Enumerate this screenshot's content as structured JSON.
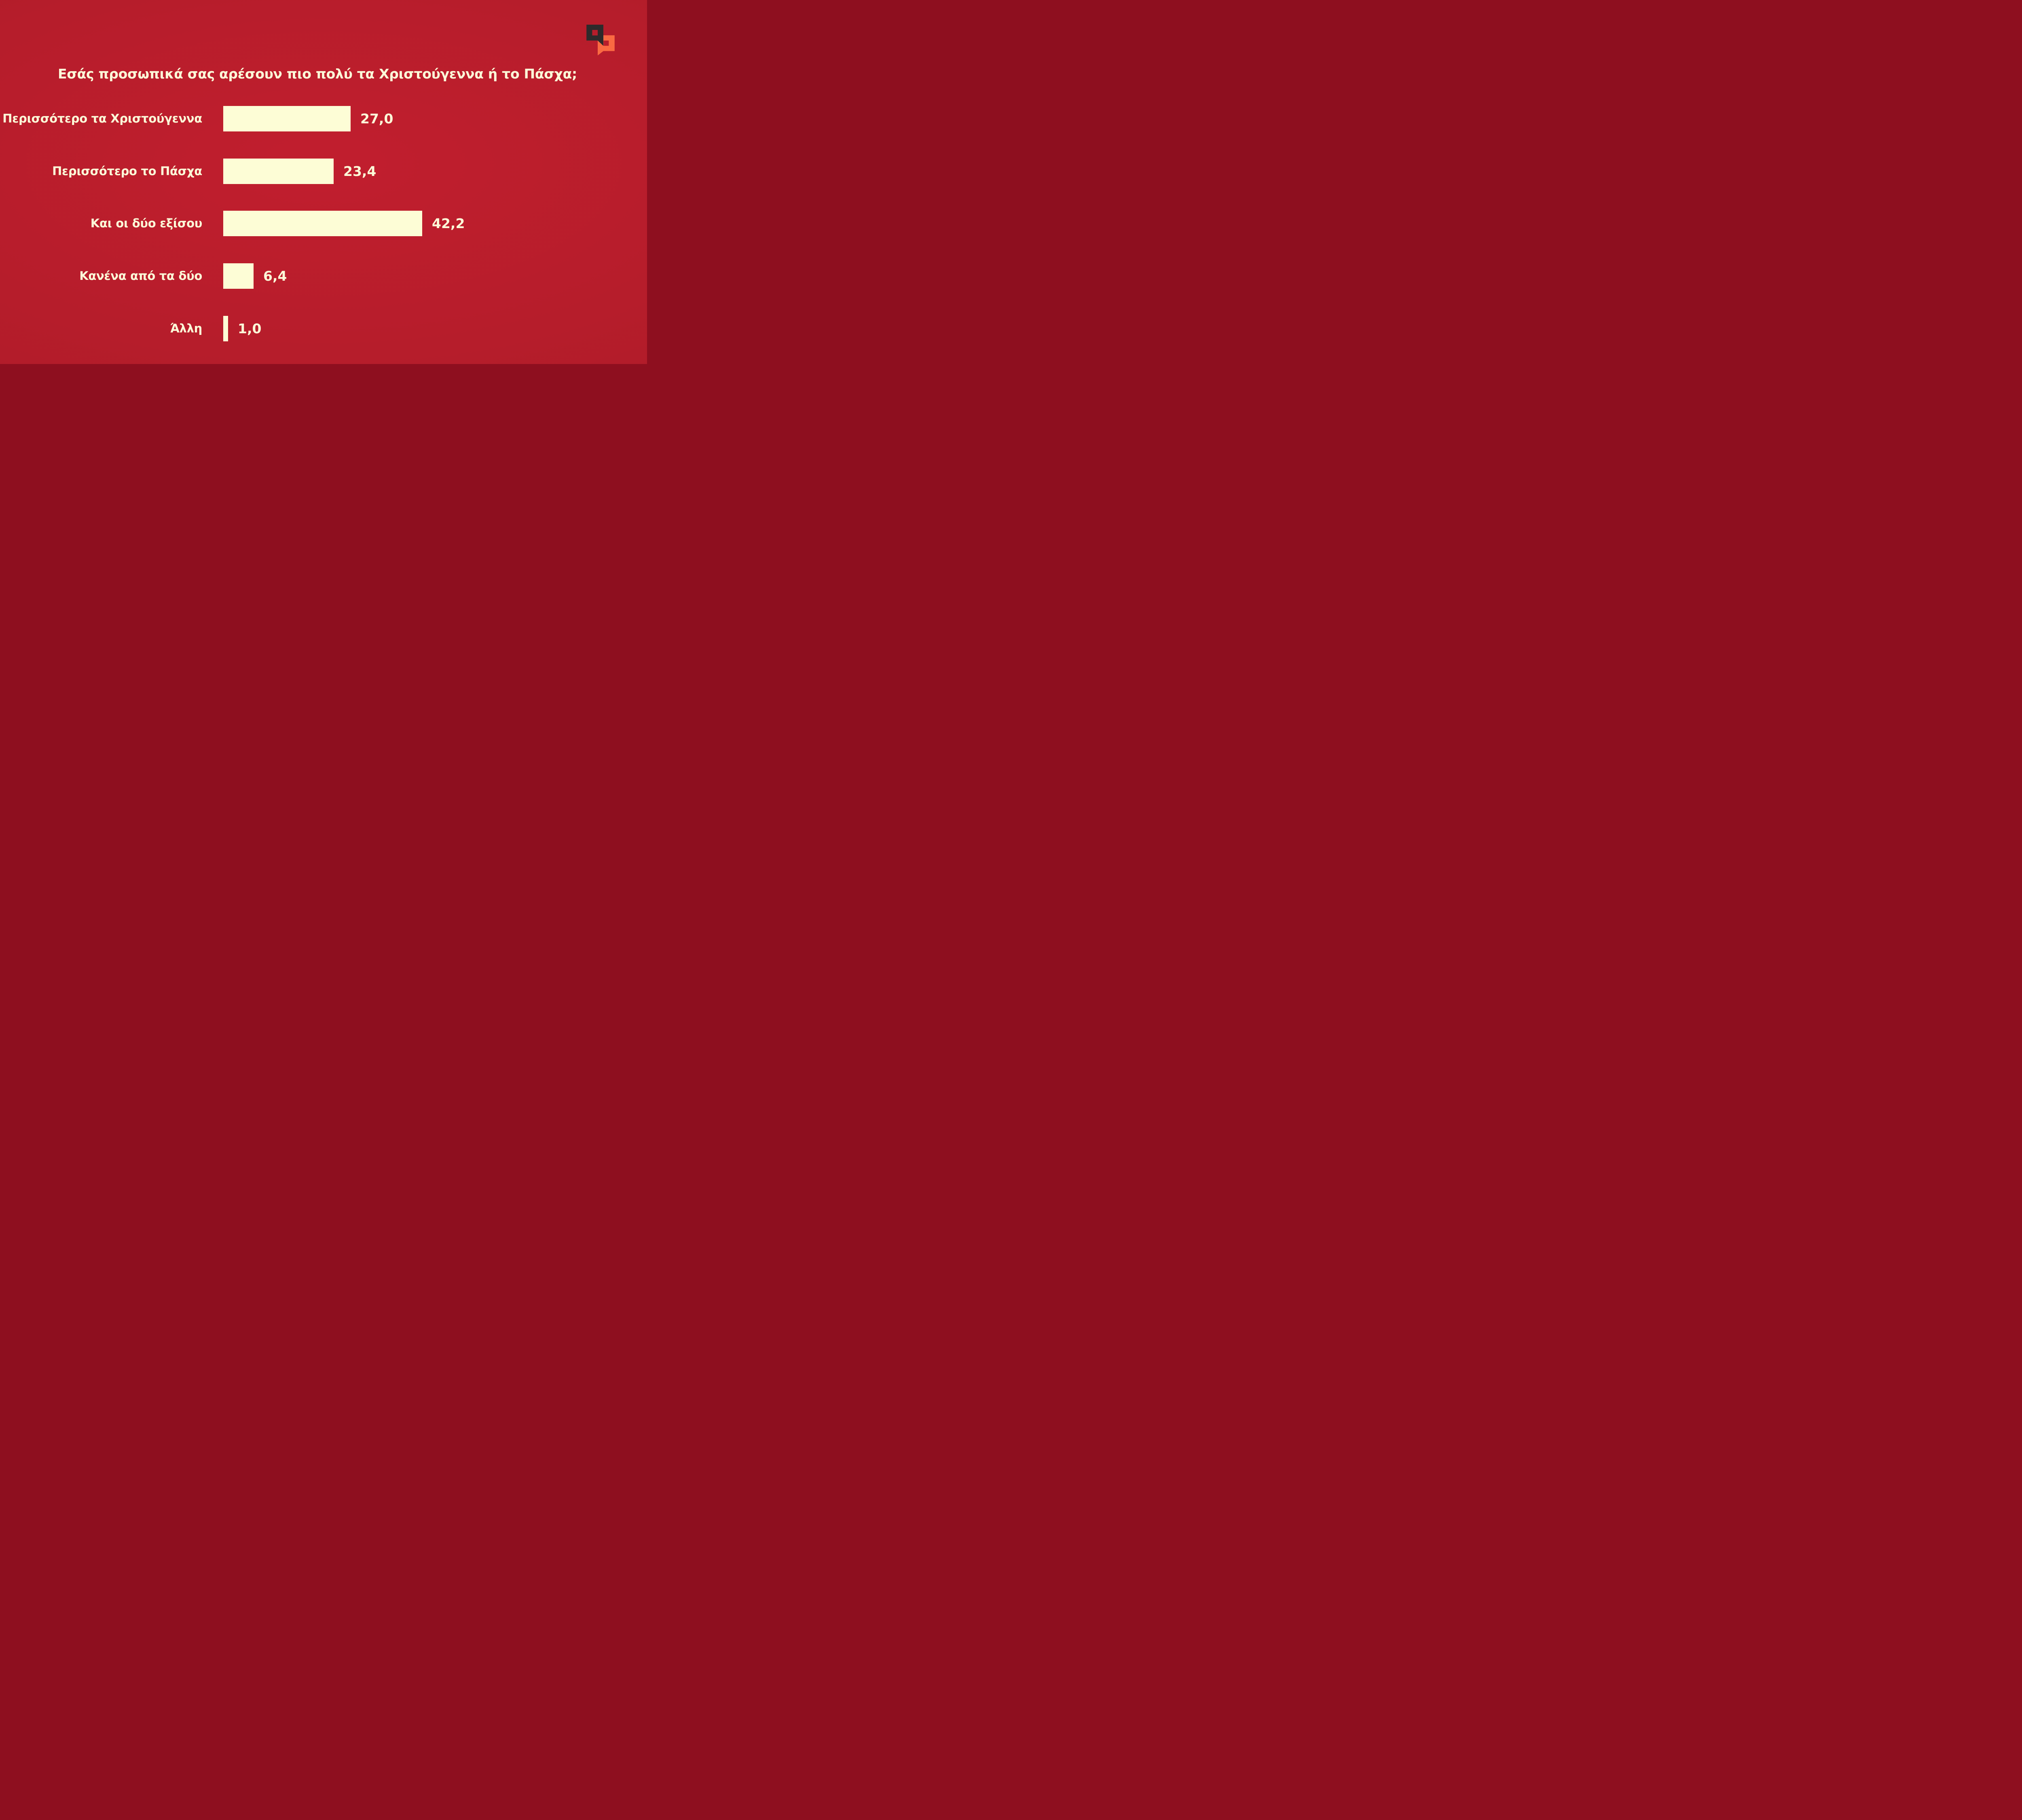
{
  "title": {
    "text": "Εσάς προσωπικά σας αρέσουν πιο πολύ τα Χριστούγεννα ή το Πάσχα;",
    "color": "#fcfbd9"
  },
  "background": {
    "center_color": "#c11e2e",
    "edge_color": "#ac1b28"
  },
  "logo": {
    "name": "chat-bubbles-logo",
    "dark_color": "#2e2a2b",
    "orange_color": "#fa6a42"
  },
  "chart_data": {
    "type": "bar",
    "orientation": "horizontal",
    "title": "Εσάς προσωπικά σας αρέσουν πιο πολύ τα Χριστούγεννα ή το Πάσχα;",
    "categories": [
      "Περισσότερο τα Χριστούγεννα",
      "Περισσότερο το Πάσχα",
      "Και οι δύο εξίσου",
      "Κανένα από τα δύο",
      "Άλλη"
    ],
    "values": [
      27.0,
      23.4,
      42.2,
      6.4,
      1.0
    ],
    "display_values": [
      "27,0",
      "23,4",
      "42,2",
      "6,4",
      "1,0"
    ],
    "bar_color": "#fdfdd6",
    "label_color": "#fcfbd9",
    "xlim": [
      0,
      45
    ],
    "grid": "off",
    "legend": "none",
    "value_label_position": "right-of-bar"
  }
}
